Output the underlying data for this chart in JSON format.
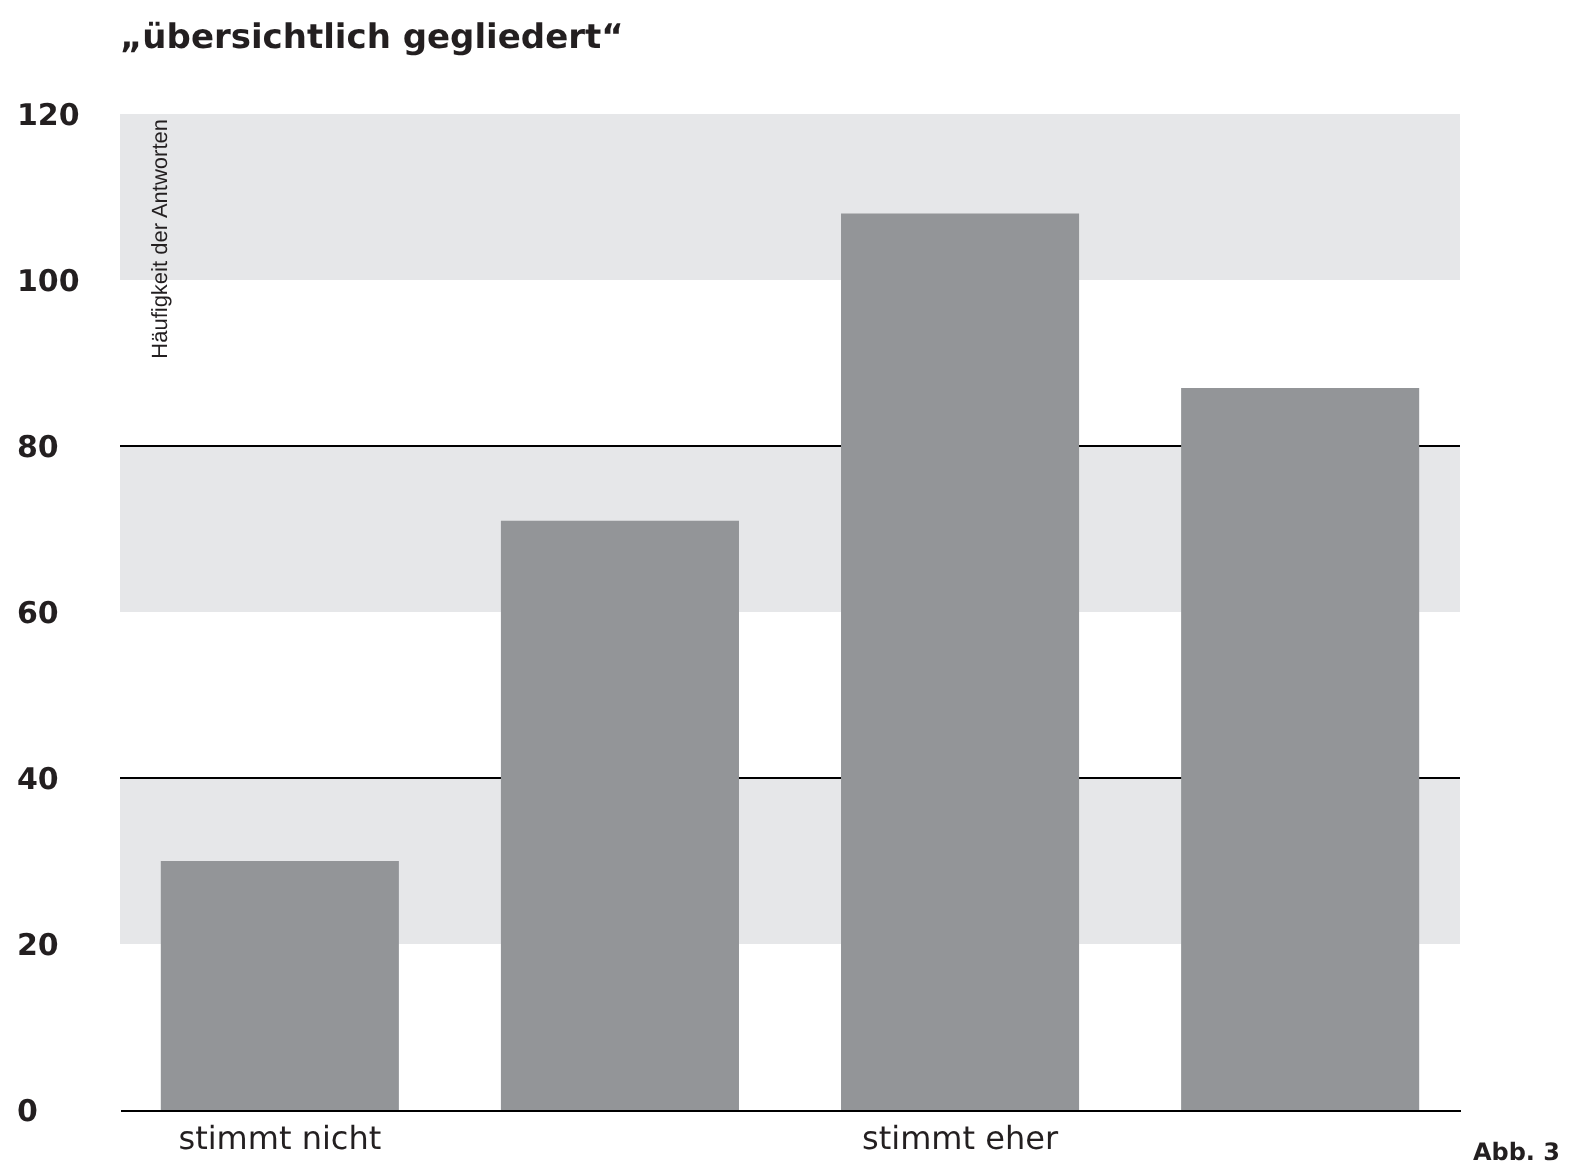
{
  "chart_data": {
    "type": "bar",
    "title": "„übersichtlich gegliedert“",
    "ylabel": "Häufigkeit der Antworten",
    "categories": [
      "stimmt nicht",
      null,
      "stimmt eher",
      null
    ],
    "values": [
      30,
      71,
      108,
      87
    ],
    "color": "#939598",
    "ylim": [
      0,
      120
    ],
    "yticks": [
      0,
      20,
      40,
      60,
      80,
      100,
      120
    ],
    "bands": [
      {
        "axis": "y",
        "from": 20,
        "to": 40,
        "color": "#e6e7e9"
      },
      {
        "axis": "y",
        "from": 60,
        "to": 80,
        "color": "#e6e7e9"
      },
      {
        "axis": "y",
        "from": 100,
        "to": 120,
        "color": "#e6e7e9"
      }
    ],
    "ref_lines": [
      {
        "axis": "y",
        "value": 40,
        "color": "#000000"
      },
      {
        "axis": "y",
        "value": 80,
        "color": "#000000"
      }
    ],
    "annotations": [
      "Abb. 3"
    ]
  }
}
